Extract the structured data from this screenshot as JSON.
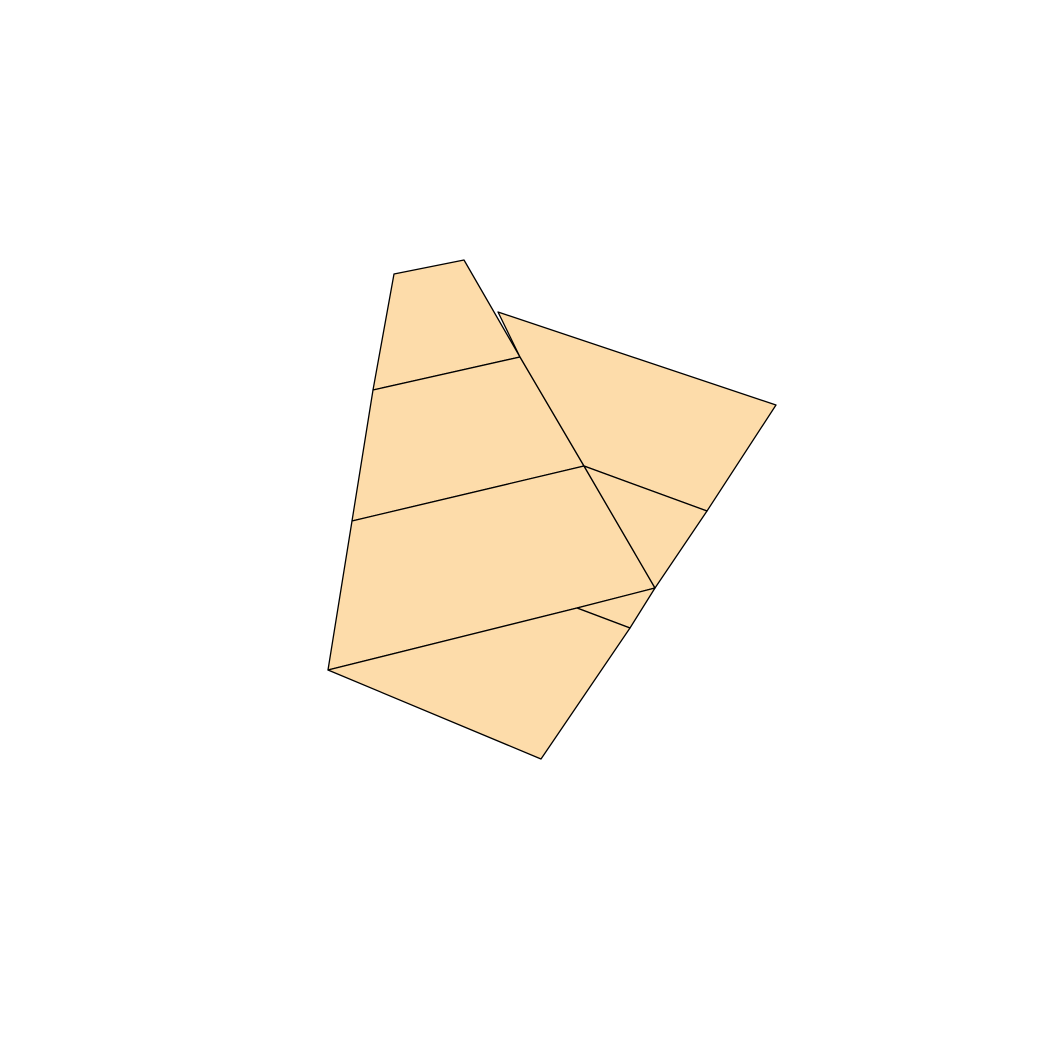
{
  "figure": {
    "fill_color": "#FDDCAA",
    "stroke_color": "#000000",
    "background_color": "#FFFFFF",
    "piece_count": 7
  }
}
